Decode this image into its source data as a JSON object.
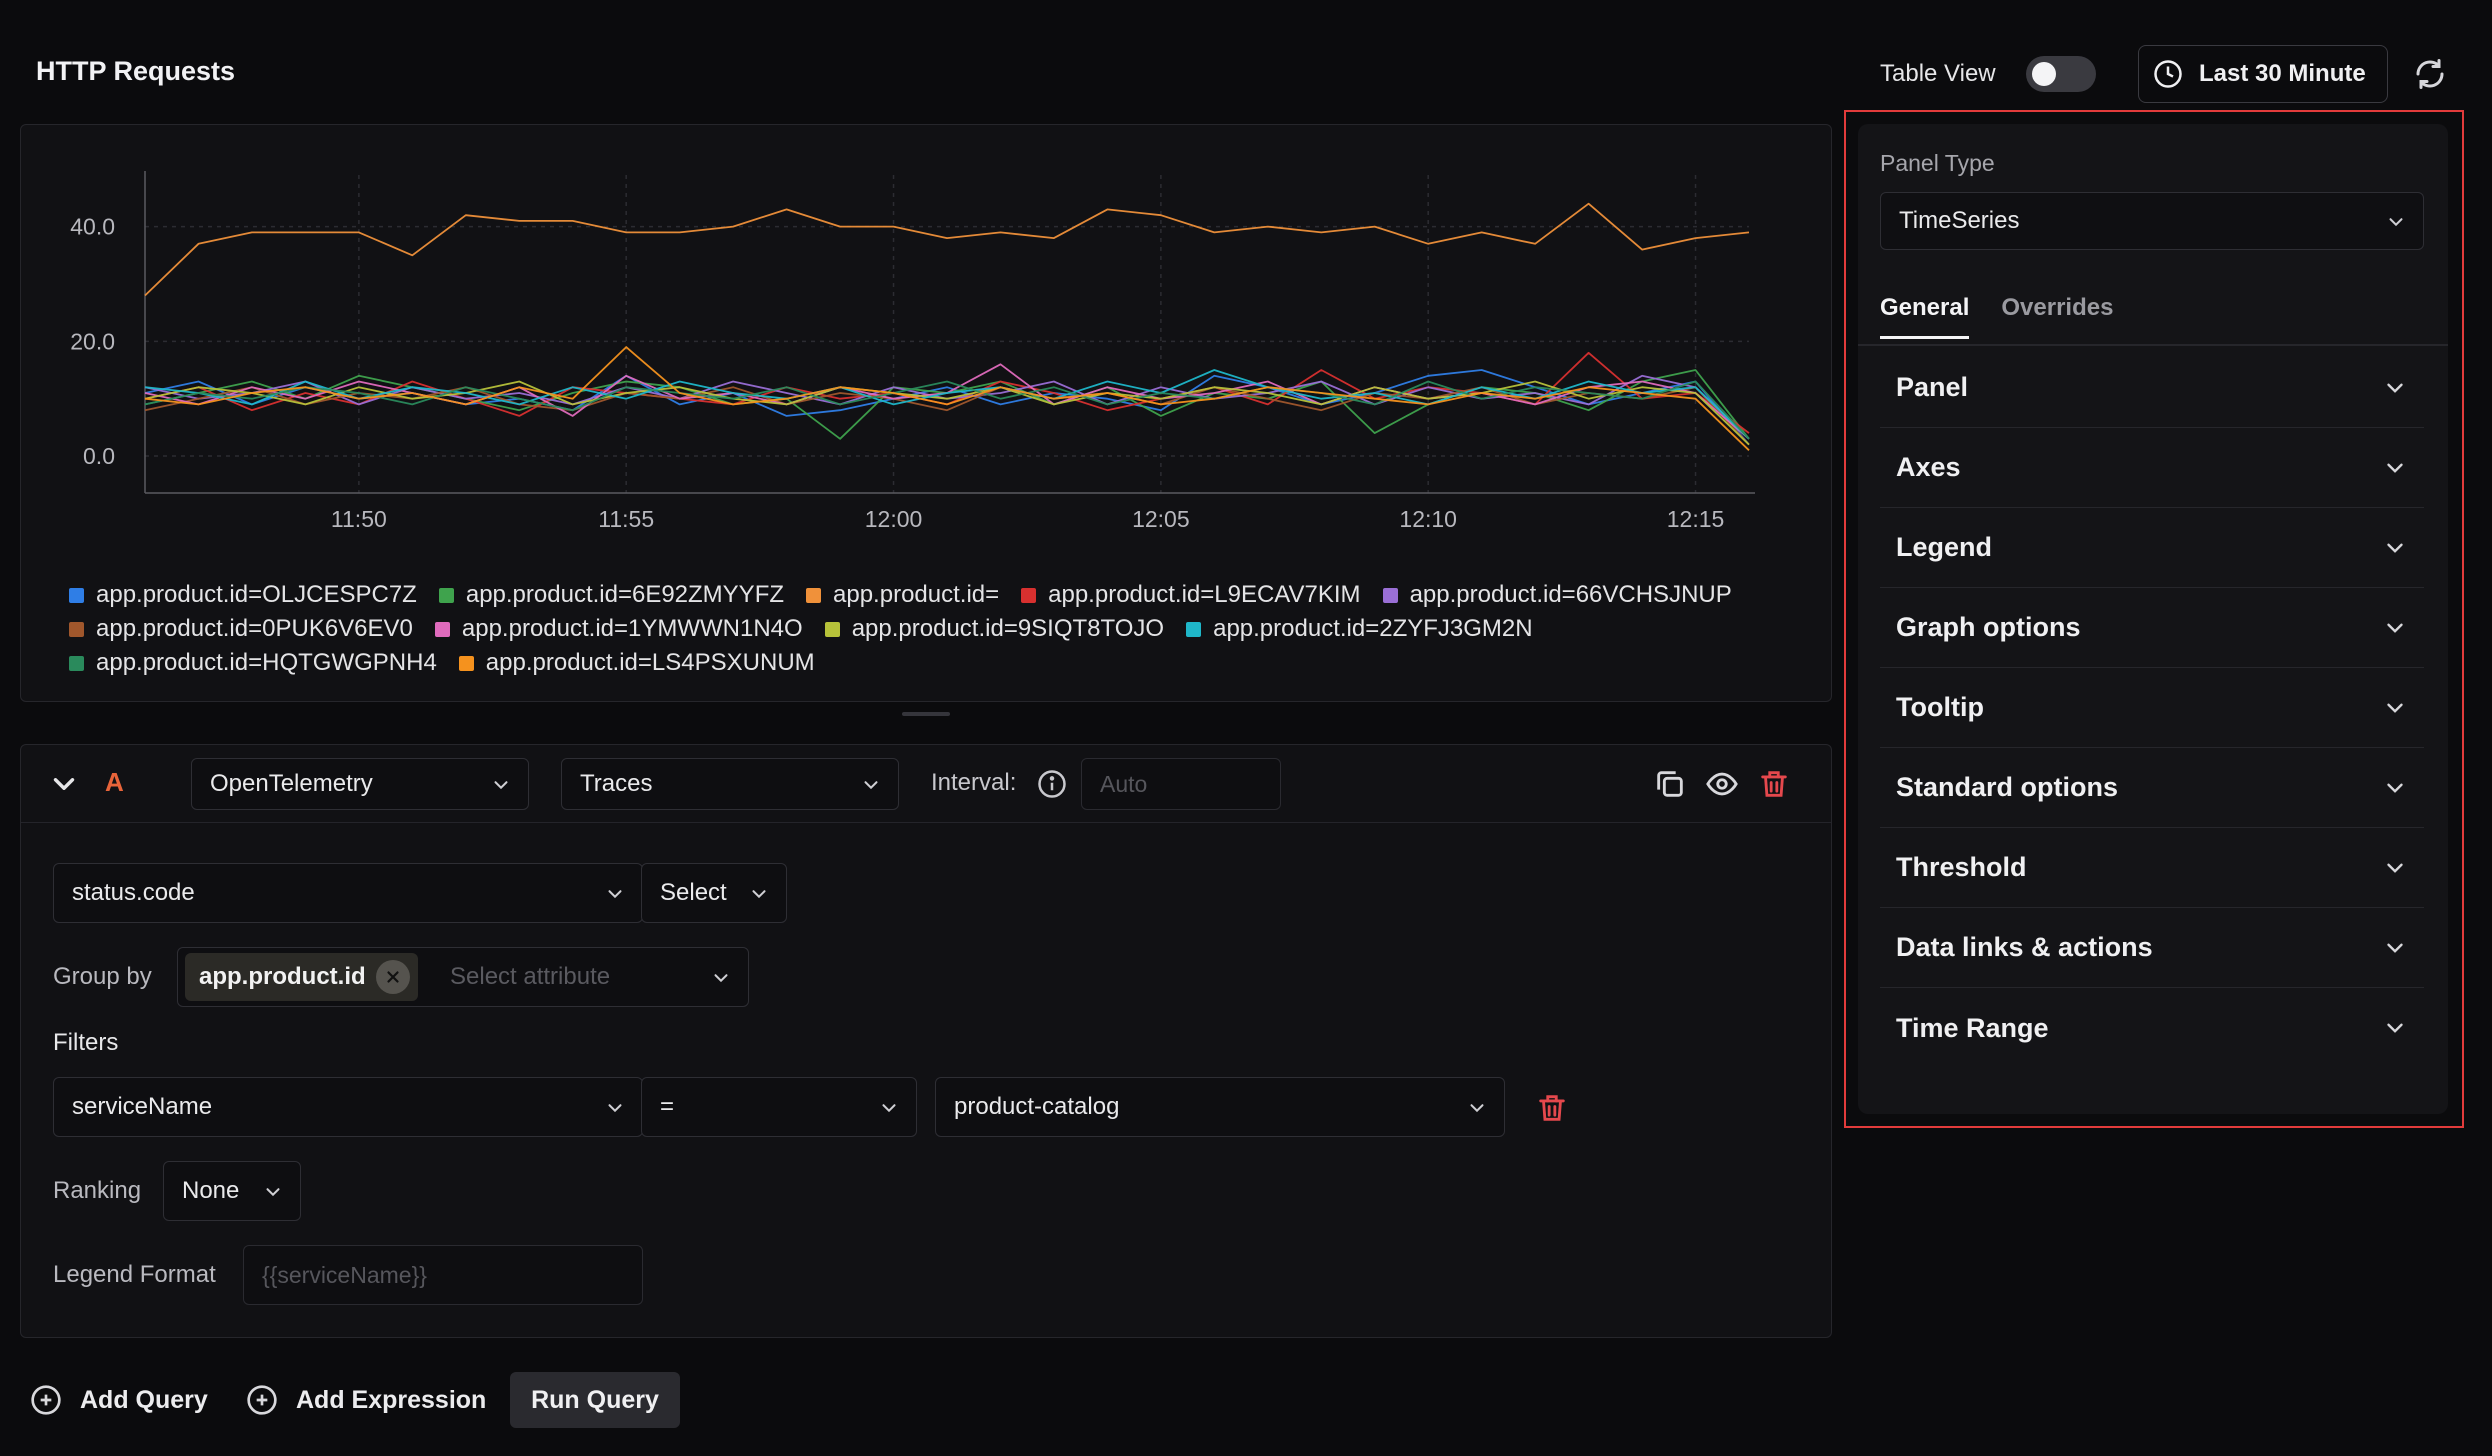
{
  "header": {
    "title": "HTTP Requests",
    "table_view_label": "Table View",
    "table_view_on": false,
    "time_range": "Last 30 Minute"
  },
  "chart_data": {
    "type": "line",
    "x": [
      "11:46",
      "11:47",
      "11:48",
      "11:49",
      "11:50",
      "11:51",
      "11:52",
      "11:53",
      "11:54",
      "11:55",
      "11:56",
      "11:57",
      "11:58",
      "11:59",
      "12:00",
      "12:01",
      "12:02",
      "12:03",
      "12:04",
      "12:05",
      "12:06",
      "12:07",
      "12:08",
      "12:09",
      "12:10",
      "12:11",
      "12:12",
      "12:13",
      "12:14",
      "12:15",
      "12:16"
    ],
    "xticks": [
      "11:50",
      "11:55",
      "12:00",
      "12:05",
      "12:10",
      "12:15"
    ],
    "yticks": [
      "0.0",
      "20.0",
      "40.0"
    ],
    "ylim": [
      -4,
      49
    ],
    "grid": true,
    "legend_position": "bottom",
    "series": [
      {
        "name": "app.product.id=OLJCESPC7Z",
        "color": "#2f7ee6",
        "values": [
          11,
          13,
          9,
          12,
          10,
          11,
          9,
          10,
          8,
          14,
          9,
          11,
          7,
          8,
          10,
          12,
          9,
          11,
          10,
          8,
          14,
          12,
          9,
          11,
          14,
          15,
          12,
          9,
          11,
          13,
          2
        ]
      },
      {
        "name": "app.product.id=6E92ZMYYFZ",
        "color": "#3fa34d",
        "values": [
          9,
          11,
          13,
          10,
          14,
          12,
          10,
          8,
          11,
          13,
          12,
          9,
          10,
          3,
          12,
          11,
          13,
          9,
          12,
          7,
          11,
          10,
          13,
          4,
          9,
          12,
          11,
          8,
          13,
          15,
          3
        ]
      },
      {
        "name": "app.product.id=",
        "color": "#f0913a",
        "values": [
          28,
          37,
          39,
          39,
          39,
          35,
          42,
          41,
          41,
          39,
          39,
          40,
          43,
          40,
          40,
          38,
          39,
          38,
          43,
          42,
          39,
          40,
          39,
          40,
          37,
          39,
          37,
          44,
          36,
          38,
          39
        ]
      },
      {
        "name": "app.product.id=L9ECAV7KIM",
        "color": "#d8302f",
        "values": [
          10,
          12,
          8,
          11,
          9,
          13,
          10,
          7,
          12,
          11,
          10,
          9,
          12,
          10,
          11,
          9,
          13,
          11,
          8,
          10,
          12,
          9,
          15,
          10,
          12,
          11,
          9,
          18,
          10,
          11,
          4
        ]
      },
      {
        "name": "app.product.id=66VCHSJNUP",
        "color": "#9a6fd6",
        "values": [
          12,
          10,
          11,
          13,
          9,
          12,
          10,
          11,
          9,
          12,
          10,
          13,
          11,
          9,
          12,
          10,
          11,
          13,
          9,
          12,
          10,
          11,
          13,
          9,
          12,
          10,
          11,
          9,
          14,
          12,
          3
        ]
      },
      {
        "name": "app.product.id=0PUK6V6EV0",
        "color": "#a0572c",
        "values": [
          8,
          10,
          12,
          9,
          11,
          10,
          12,
          9,
          8,
          11,
          10,
          12,
          9,
          11,
          10,
          8,
          12,
          10,
          11,
          9,
          12,
          10,
          8,
          11,
          10,
          12,
          9,
          11,
          10,
          12,
          2
        ]
      },
      {
        "name": "app.product.id=1YMWWN1N4O",
        "color": "#e06bbd",
        "values": [
          11,
          9,
          12,
          10,
          13,
          11,
          9,
          12,
          7,
          14,
          10,
          11,
          9,
          12,
          10,
          11,
          16,
          9,
          12,
          10,
          11,
          13,
          9,
          12,
          10,
          11,
          9,
          12,
          13,
          11,
          3
        ]
      },
      {
        "name": "app.product.id=9SIQT8TOJO",
        "color": "#b7c23a",
        "values": [
          10,
          12,
          11,
          9,
          12,
          10,
          11,
          13,
          9,
          11,
          12,
          10,
          9,
          12,
          11,
          10,
          12,
          9,
          11,
          10,
          12,
          11,
          9,
          12,
          10,
          11,
          13,
          10,
          12,
          11,
          2
        ]
      },
      {
        "name": "app.product.id=2ZYFJ3GM2N",
        "color": "#1fb7c9",
        "values": [
          12,
          11,
          9,
          13,
          10,
          12,
          11,
          9,
          12,
          10,
          13,
          11,
          10,
          12,
          9,
          11,
          12,
          10,
          13,
          11,
          15,
          12,
          10,
          11,
          9,
          12,
          10,
          13,
          11,
          12,
          3
        ]
      },
      {
        "name": "app.product.id=HQTGWGPNH4",
        "color": "#2a8a5c",
        "values": [
          9,
          11,
          10,
          12,
          11,
          9,
          12,
          10,
          8,
          12,
          11,
          10,
          12,
          9,
          11,
          13,
          10,
          12,
          9,
          11,
          10,
          12,
          11,
          9,
          13,
          10,
          12,
          11,
          10,
          13,
          3
        ]
      },
      {
        "name": "app.product.id=LS4PSXUNUM",
        "color": "#f5921e",
        "values": [
          10,
          9,
          11,
          12,
          10,
          11,
          9,
          12,
          10,
          19,
          11,
          9,
          10,
          12,
          11,
          9,
          12,
          10,
          11,
          9,
          10,
          12,
          11,
          10,
          9,
          11,
          10,
          12,
          11,
          10,
          1
        ]
      }
    ]
  },
  "query": {
    "collapse_icon": "chevron-down-icon",
    "label": "A",
    "label_color": "#e8643a",
    "data_source": "OpenTelemetry",
    "signal": "Traces",
    "interval_label": "Interval:",
    "interval_placeholder": "Auto",
    "aggregate_attribute": "status.code",
    "aggregate_op": "Select",
    "group_by_label": "Group by",
    "group_by_chip": "app.product.id",
    "group_by_placeholder": "Select attribute",
    "filters_label": "Filters",
    "filter_key": "serviceName",
    "filter_op": "=",
    "filter_value": "product-catalog",
    "ranking_label": "Ranking",
    "ranking_value": "None",
    "legend_format_label": "Legend Format",
    "legend_format_placeholder": "{{serviceName}}"
  },
  "actions": {
    "add_query": "Add Query",
    "add_expression": "Add Expression",
    "run_query": "Run Query"
  },
  "settings": {
    "panel_type_label": "Panel Type",
    "panel_type_value": "TimeSeries",
    "tabs": [
      "General",
      "Overrides"
    ],
    "sections": [
      "Panel",
      "Axes",
      "Legend",
      "Graph options",
      "Tooltip",
      "Standard options",
      "Threshold",
      "Data links & actions",
      "Time Range"
    ]
  },
  "colors": {
    "background": "#0b0b0d",
    "panel": "#111114",
    "highlight": "#e23b3b",
    "danger": "#e5484d"
  }
}
